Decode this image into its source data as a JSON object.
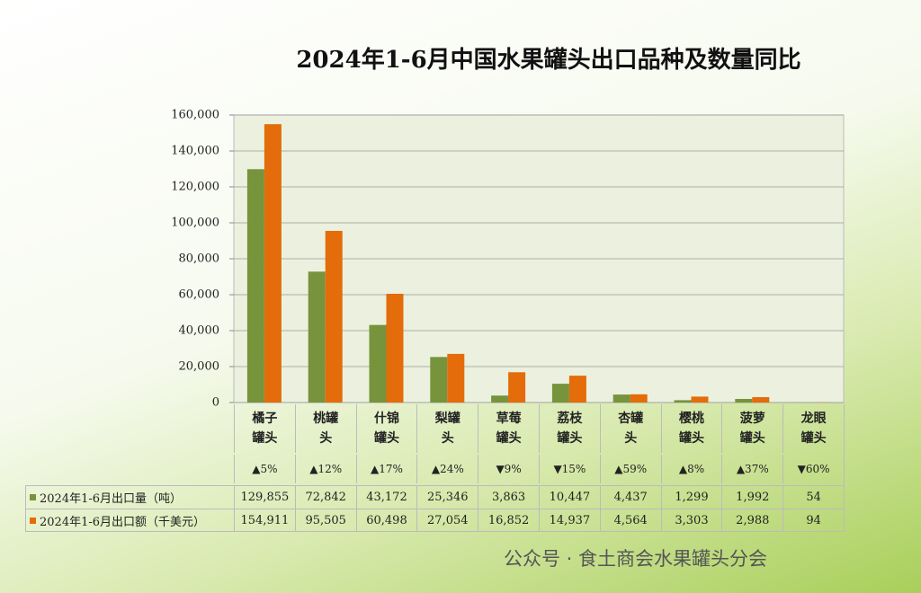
{
  "chart_data": {
    "type": "bar",
    "title": "2024年1-6月中国水果罐头出口品种及数量同比",
    "categories": [
      "橘子罐头",
      "桃罐头",
      "什锦罐头",
      "梨罐头",
      "草莓罐头",
      "荔枝罐头",
      "杏罐头",
      "樱桃罐头",
      "菠萝罐头",
      "龙眼罐头"
    ],
    "changes": [
      "▲5%",
      "▲12%",
      "▲17%",
      "▲24%",
      "▼9%",
      "▼15%",
      "▲59%",
      "▲8%",
      "▲37%",
      "▼60%"
    ],
    "series": [
      {
        "name": "2024年1-6月出口量（吨）",
        "color": "#77933c",
        "values": [
          129855,
          72842,
          43172,
          25346,
          3863,
          10447,
          4437,
          1299,
          1992,
          54
        ],
        "value_labels": [
          "129,855",
          "72,842",
          "43,172",
          "25,346",
          "3,863",
          "10,447",
          "4,437",
          "1,299",
          "1,992",
          "54"
        ]
      },
      {
        "name": "2024年1-6月出口额（千美元）",
        "color": "#e46c0a",
        "values": [
          154911,
          95505,
          60498,
          27054,
          16852,
          14937,
          4564,
          3303,
          2988,
          94
        ],
        "value_labels": [
          "154,911",
          "95,505",
          "60,498",
          "27,054",
          "16,852",
          "14,937",
          "4,564",
          "3,303",
          "2,988",
          "94"
        ]
      }
    ],
    "ylim": [
      0,
      160000
    ],
    "yticks": [
      0,
      {
        "value": 20000,
        "label": "20,000"
      },
      {
        "value": 40000,
        "label": "40,000"
      },
      {
        "value": 60000,
        "label": "60,000"
      },
      {
        "value": 80000,
        "label": "80,000"
      },
      {
        "value": 100000,
        "label": "100,000"
      },
      {
        "value": 120000,
        "label": "120,000"
      },
      {
        "value": 140000,
        "label": "140,000"
      },
      {
        "value": 160000,
        "label": "160,000"
      }
    ],
    "grid": true,
    "watermark": "公众号 · 食土商会水果罐头分会"
  }
}
